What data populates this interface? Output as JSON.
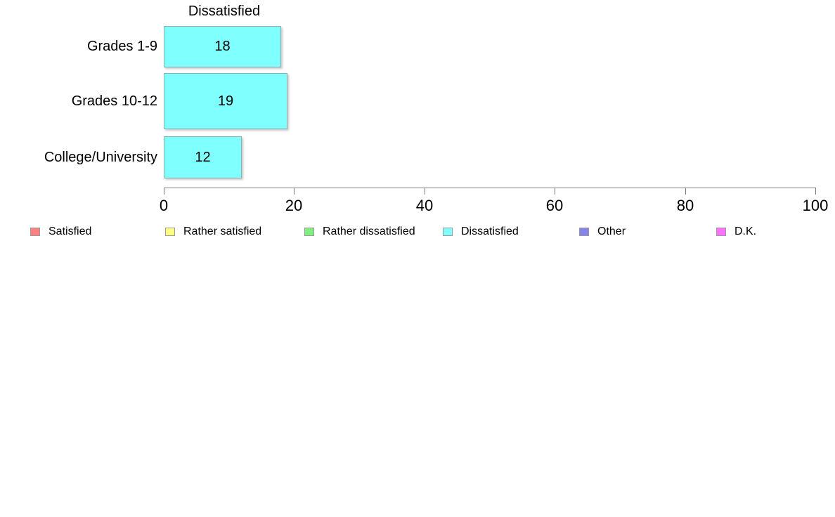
{
  "chart_data": {
    "type": "bar",
    "orientation": "horizontal",
    "title": "Dissatisfied",
    "categories": [
      "Grades 1-9",
      "Grades 10-12",
      "College/University"
    ],
    "values": [
      18,
      19,
      12
    ],
    "bar_labels": [
      "18",
      "19",
      "12"
    ],
    "xlabel": "",
    "ylabel": "",
    "xlim": [
      0,
      100
    ],
    "xticks": [
      0,
      20,
      40,
      60,
      80,
      100
    ],
    "grid": false,
    "bar_color": "#80FFFF",
    "legend_position": "bottom",
    "legend": [
      {
        "label": "Satisfied",
        "color": "#FF8080"
      },
      {
        "label": "Rather satisfied",
        "color": "#FFFF80"
      },
      {
        "label": "Rather dissatisfied",
        "color": "#80EE80"
      },
      {
        "label": "Dissatisfied",
        "color": "#80FFFF"
      },
      {
        "label": "Other",
        "color": "#8484EC"
      },
      {
        "label": "D.K.",
        "color": "#FF70FF"
      }
    ]
  }
}
